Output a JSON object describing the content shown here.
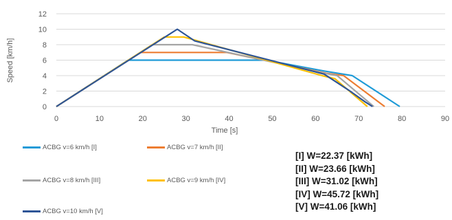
{
  "chart_data": {
    "type": "line",
    "title": "",
    "xlabel": "Time [s]",
    "ylabel": "Speed [km/h]",
    "xlim": [
      0,
      90
    ],
    "ylim": [
      0,
      12
    ],
    "xticks": [
      0,
      10,
      20,
      30,
      40,
      50,
      60,
      70,
      80,
      90
    ],
    "yticks": [
      0,
      2,
      4,
      6,
      8,
      10,
      12
    ],
    "grid": "horizontal",
    "legend_position": "bottom-left",
    "series": [
      {
        "name": "ACBG v=6 km/h [I]",
        "color": "#1f9bd7",
        "x": [
          0,
          16.6,
          48.5,
          62,
          68.5,
          79.5
        ],
        "y": [
          0,
          6,
          6,
          4.6,
          4.0,
          0
        ]
      },
      {
        "name": "ACBG v=7 km/h [II]",
        "color": "#ed7d31",
        "x": [
          0,
          19.5,
          39.5,
          62.5,
          66.5,
          76
        ],
        "y": [
          0,
          7,
          7,
          4.3,
          4.0,
          0
        ]
      },
      {
        "name": "ACBG v=8 km/h [III]",
        "color": "#a5a5a5",
        "x": [
          0,
          22.2,
          31.5,
          62,
          65,
          73.5
        ],
        "y": [
          0,
          8,
          8,
          4.3,
          4.0,
          0
        ]
      },
      {
        "name": "ACBG v=9 km/h [IV]",
        "color": "#ffc000",
        "x": [
          0,
          25,
          29.5,
          61.5,
          64.5,
          72
        ],
        "y": [
          0,
          9,
          9,
          4.0,
          3.6,
          0
        ]
      },
      {
        "name": "ACBG v=10 km/h [V]",
        "color": "#2e5597",
        "x": [
          0,
          28,
          32,
          62,
          68,
          71.5,
          73.2
        ],
        "y": [
          0,
          10,
          8.5,
          4.2,
          2.0,
          0.6,
          0
        ]
      }
    ]
  },
  "energy_labels": [
    "[I] W=22.37 [kWh]",
    "[II] W=23.66 [kWh]",
    "[III] W=31.02 [kWh]",
    "[IV] W=45.72 [kWh]",
    "[V] W=41.06 [kWh]"
  ]
}
